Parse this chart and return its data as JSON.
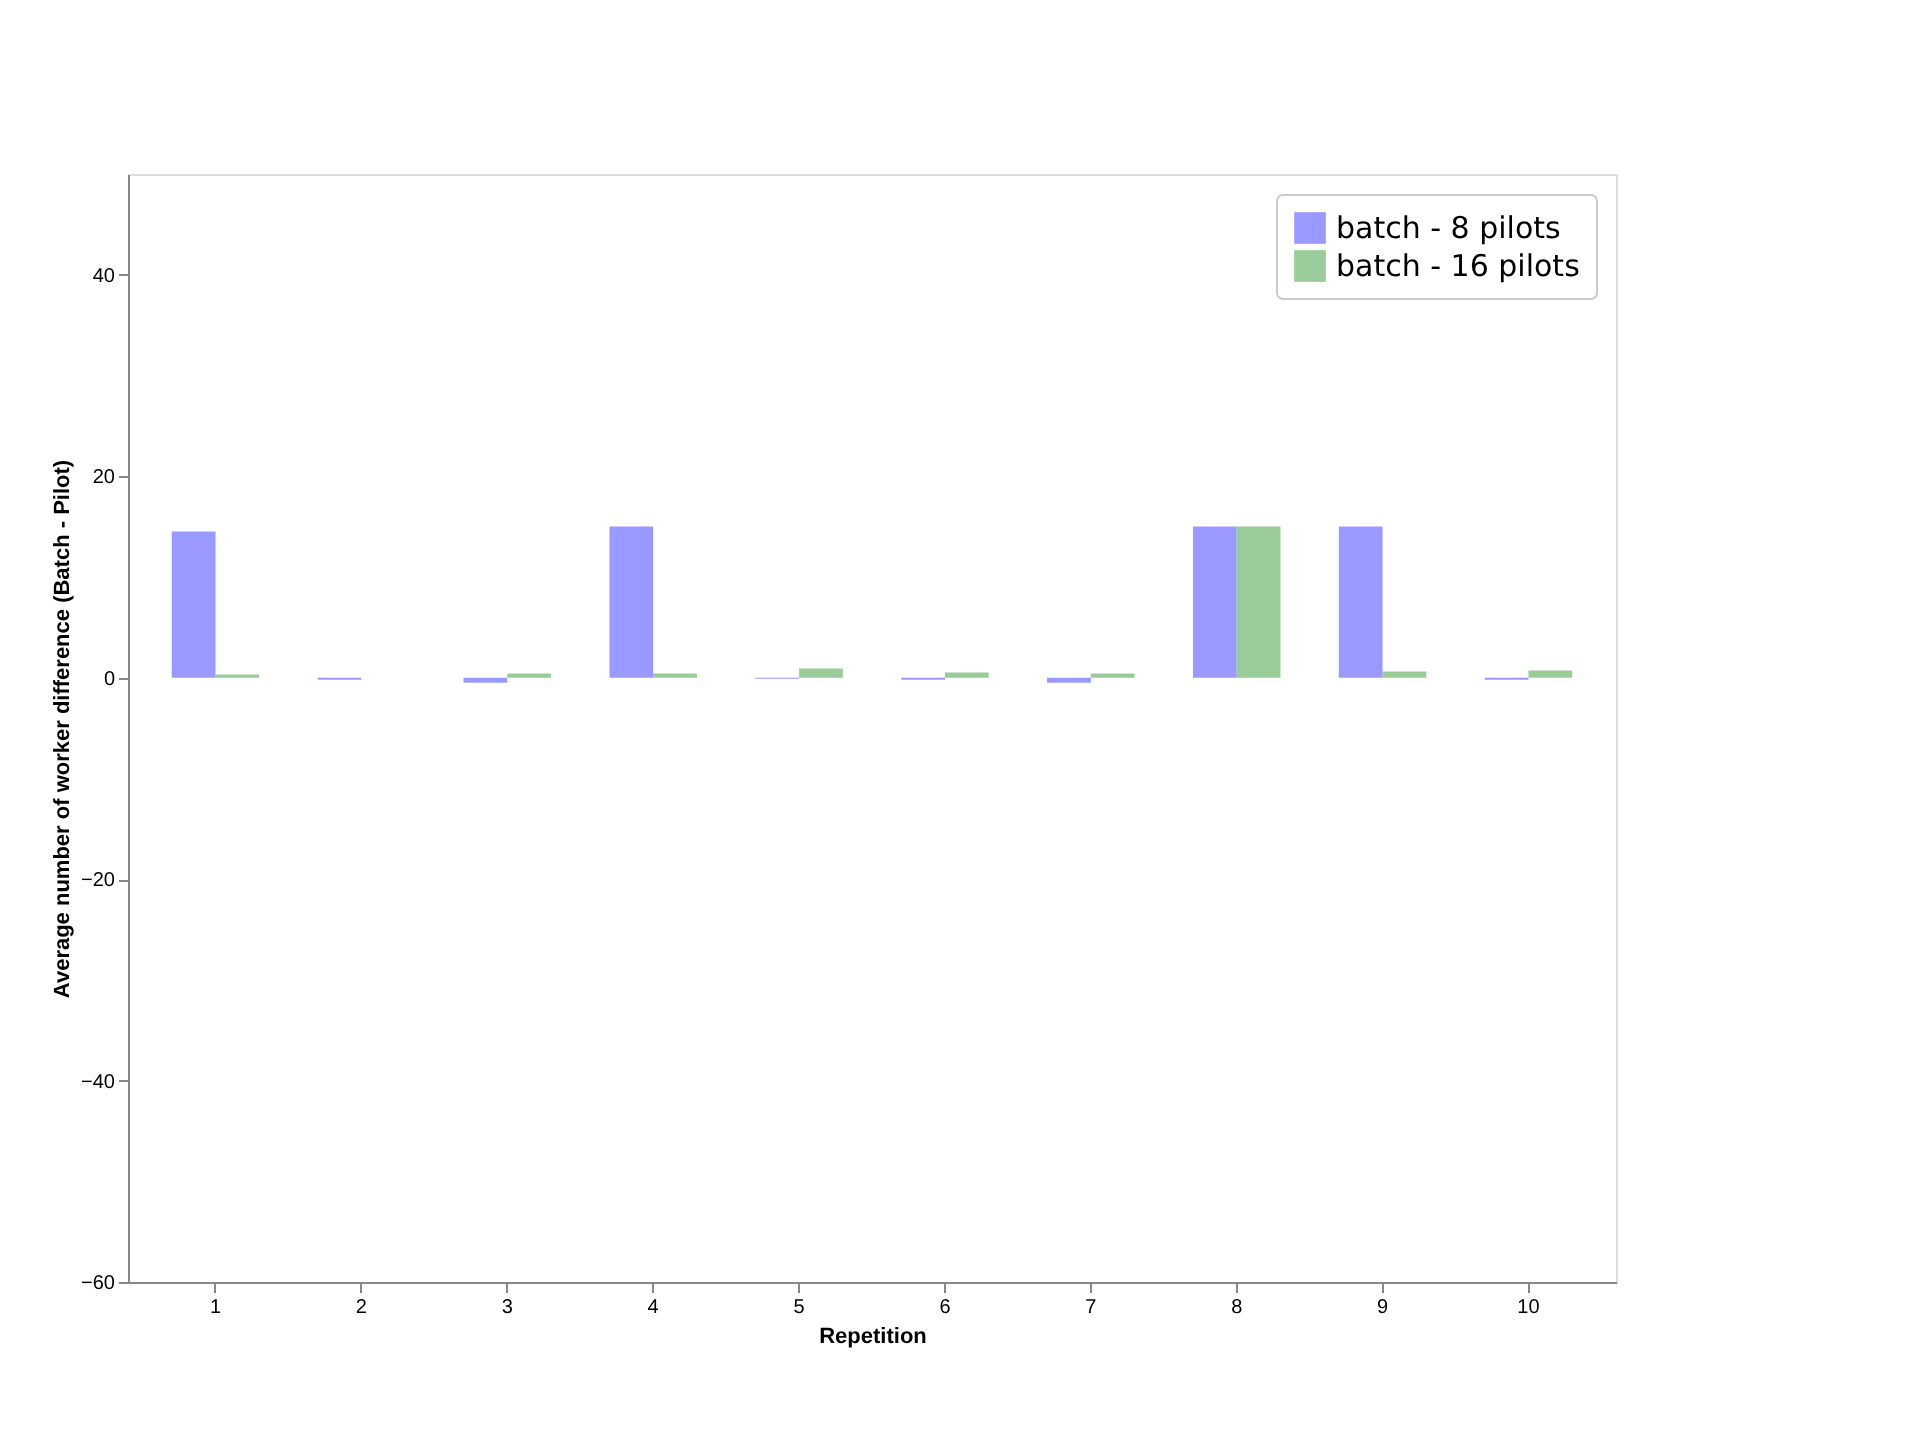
{
  "chart_data": {
    "type": "bar",
    "xlabel": "Repetition",
    "ylabel": "Average number of worker difference (Batch - Pilot)",
    "categories": [
      "1",
      "2",
      "3",
      "4",
      "5",
      "6",
      "7",
      "8",
      "9",
      "10"
    ],
    "series": [
      {
        "name": "batch - 8 pilots",
        "color": "#9999ff",
        "values": [
          14.5,
          -0.2,
          -0.5,
          15,
          -0.1,
          -0.2,
          -0.5,
          15,
          15,
          -0.2
        ]
      },
      {
        "name": "batch - 16 pilots",
        "color": "#99cc99",
        "values": [
          0.3,
          0,
          0.4,
          0.4,
          0.9,
          0.5,
          0.4,
          15,
          0.6,
          0.7
        ]
      }
    ],
    "ylim": [
      -60,
      50
    ],
    "yticks": [
      -60,
      -40,
      -20,
      0,
      20,
      40
    ],
    "grid": false,
    "legend": "top right"
  }
}
